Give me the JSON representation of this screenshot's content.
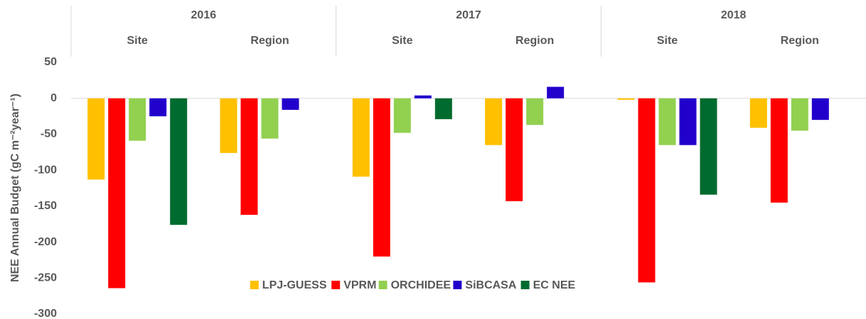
{
  "chart_data": {
    "type": "bar",
    "y_label": "NEE Annual Budget (gC m⁻²year⁻¹)",
    "category_groups": [
      {
        "name": "2016",
        "categories": [
          "Site",
          "Region"
        ]
      },
      {
        "name": "2017",
        "categories": [
          "Site",
          "Region"
        ]
      },
      {
        "name": "2018",
        "categories": [
          "Site",
          "Region"
        ]
      }
    ],
    "series": [
      {
        "name": "LPJ-GUESS",
        "color": "#ffc000",
        "values": [
          -113,
          -76,
          -109,
          -65,
          -2,
          -41
        ]
      },
      {
        "name": "VPRM",
        "color": "#ff0000",
        "values": [
          -264,
          -162,
          -220,
          -143,
          -256,
          -145
        ]
      },
      {
        "name": "ORCHIDEE",
        "color": "#92d050",
        "values": [
          -59,
          -56,
          -48,
          -37,
          -65,
          -45
        ]
      },
      {
        "name": "SiBCASA",
        "color": "#2200cc",
        "values": [
          -25,
          -16,
          4,
          16,
          -65,
          -30
        ]
      },
      {
        "name": "EC NEE",
        "color": "#006b2e",
        "values": [
          -176,
          null,
          -29,
          null,
          -134,
          null
        ]
      }
    ],
    "ylim": [
      -300,
      50
    ],
    "yticks": [
      -300,
      -250,
      -200,
      -150,
      -100,
      -50,
      0,
      50
    ],
    "grid": false,
    "legend": "bottom"
  }
}
